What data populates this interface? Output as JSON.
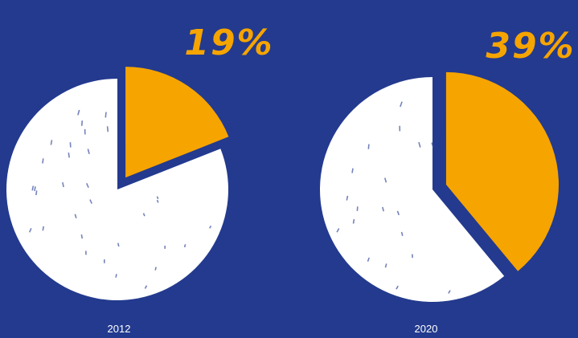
{
  "colors": {
    "background": "#233a8e",
    "highlight": "#f6a400",
    "remainder": "#ffffff"
  },
  "chart_data": [
    {
      "type": "pie",
      "category": "2012",
      "slices": [
        {
          "value": 19,
          "color": "#f6a400",
          "exploded": true
        },
        {
          "value": 81,
          "color": "#ffffff",
          "exploded": false
        }
      ],
      "label": "19%"
    },
    {
      "type": "pie",
      "category": "2020",
      "slices": [
        {
          "value": 39,
          "color": "#f6a400",
          "exploded": true
        },
        {
          "value": 61,
          "color": "#ffffff",
          "exploded": false
        }
      ],
      "label": "39%"
    }
  ]
}
